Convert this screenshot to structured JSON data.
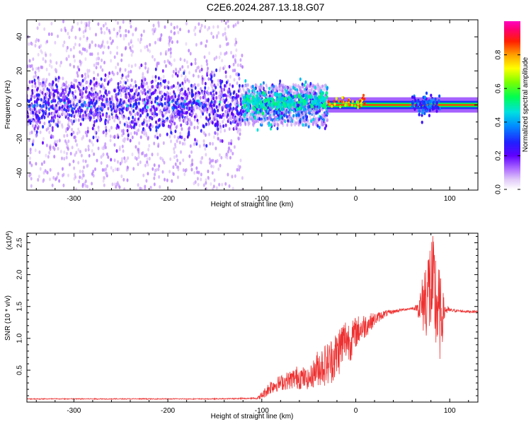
{
  "title": "C2E6.2024.287.13.18.G07",
  "chart_data": [
    {
      "type": "heatmap",
      "name": "spectrogram",
      "xlabel": "Height of straight line (km)",
      "ylabel": "Frequency (Hz)",
      "xlim": [
        -350,
        130
      ],
      "ylim": [
        -50,
        50
      ],
      "xticks": [
        -300,
        -200,
        -100,
        0,
        100
      ],
      "yticks": [
        -40,
        -20,
        0,
        20,
        40
      ],
      "colorbar": {
        "label": "Normalized spectral amplitude",
        "range": [
          0,
          1
        ],
        "ticks": [
          "0.0",
          "0.2",
          "0.4",
          "0.6",
          "0.8"
        ],
        "colors": [
          "#ffffff",
          "#e0c8f8",
          "#c080ff",
          "#8800ff",
          "#2200ff",
          "#0080ff",
          "#00e0e0",
          "#00ff60",
          "#60ff00",
          "#ffff00",
          "#ffa000",
          "#ff2000",
          "#ff0080",
          "#ff00c0"
        ]
      },
      "regions": [
        {
          "x": [
            -350,
            -120
          ],
          "spread_hz": 50,
          "core_hz": 8,
          "amplitude": [
            0.05,
            0.3
          ]
        },
        {
          "x": [
            -120,
            -30
          ],
          "spread_hz": 12,
          "core_hz": 5,
          "amplitude": [
            0.2,
            0.5
          ]
        },
        {
          "x": [
            -30,
            130
          ],
          "spread_hz": 3,
          "core_hz": 1,
          "amplitude": [
            0.7,
            0.95
          ]
        }
      ]
    },
    {
      "type": "line",
      "name": "snr",
      "xlabel": "Height of straight line (km)",
      "ylabel": "SNR (10 * v/v)",
      "multiplier_label": "(x10",
      "multiplier_exp": "4",
      "multiplier_close": ")",
      "xlim": [
        -350,
        130
      ],
      "ylim": [
        0,
        2.65
      ],
      "xticks": [
        -300,
        -200,
        -100,
        0,
        100
      ],
      "yticks": [
        "0.5",
        "1.0",
        "1.5",
        "2.0",
        "2.5"
      ],
      "color": "#ee3030",
      "series": [
        {
          "name": "SNR",
          "x": [
            -350,
            -250,
            -150,
            -105,
            -100,
            -90,
            -80,
            -70,
            -60,
            -50,
            -40,
            -30,
            -20,
            -15,
            -10,
            -5,
            0,
            10,
            20,
            30,
            40,
            50,
            60,
            65,
            70,
            75,
            80,
            85,
            90,
            95,
            100,
            110,
            120,
            130
          ],
          "y": [
            0.05,
            0.05,
            0.05,
            0.06,
            0.1,
            0.25,
            0.3,
            0.35,
            0.4,
            0.35,
            0.55,
            0.6,
            0.75,
            0.9,
            1.0,
            0.95,
            1.1,
            1.2,
            1.3,
            1.38,
            1.42,
            1.45,
            1.47,
            1.48,
            1.5,
            1.7,
            1.8,
            1.6,
            1.3,
            1.45,
            1.44,
            1.43,
            1.42,
            1.42
          ],
          "noise": [
            0,
            0,
            0,
            0.01,
            0.06,
            0.12,
            0.12,
            0.15,
            0.2,
            0.15,
            0.3,
            0.35,
            0.4,
            0.4,
            0.35,
            0.3,
            0.25,
            0.2,
            0.1,
            0.06,
            0.03,
            0.02,
            0.02,
            0.05,
            0.4,
            0.7,
            0.9,
            0.9,
            0.7,
            0.1,
            0.03,
            0.02,
            0.02,
            0.02
          ]
        }
      ]
    }
  ]
}
